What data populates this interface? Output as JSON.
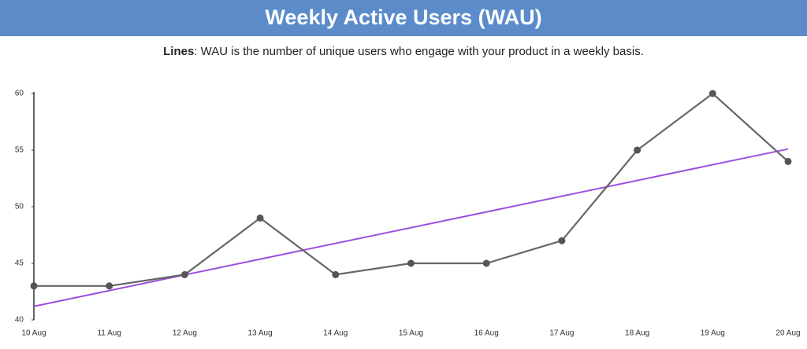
{
  "chart_data": {
    "type": "line",
    "title": "Weekly Active Users (WAU)",
    "subtitle_label": "Lines",
    "subtitle": ": WAU is the number of unique users who engage with your product in a weekly basis.",
    "categories": [
      "10 Aug",
      "11 Aug",
      "12 Aug",
      "13 Aug",
      "14 Aug",
      "15 Aug",
      "16 Aug",
      "17 Aug",
      "18 Aug",
      "19 Aug",
      "20 Aug"
    ],
    "series": [
      {
        "color": "#666666",
        "marker_color": "#555555",
        "values": [
          43,
          43,
          44,
          49,
          44,
          45,
          45,
          47,
          55,
          60,
          54
        ]
      }
    ],
    "trendline": {
      "color": "#9b4fe0",
      "values": [
        41.2,
        55.1
      ]
    },
    "ylim": [
      40,
      60
    ],
    "yticks": [
      40,
      45,
      50,
      55,
      60
    ],
    "grid": false,
    "header_color": "#5b8cc9"
  }
}
